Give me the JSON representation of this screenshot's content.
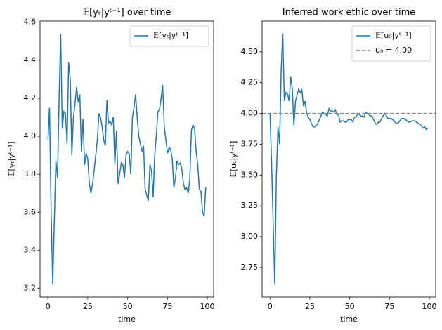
{
  "chart_data": [
    {
      "type": "line",
      "title": "𝔼[yₜ|yᵗ⁻¹] over time",
      "xlabel": "time",
      "ylabel": "𝔼[yₜ|yᵗ⁻¹]",
      "x": [
        0,
        1,
        2,
        3,
        4,
        5,
        6,
        7,
        8,
        9,
        10,
        11,
        12,
        13,
        14,
        15,
        16,
        17,
        18,
        19,
        20,
        21,
        22,
        23,
        24,
        25,
        26,
        27,
        28,
        29,
        30,
        31,
        32,
        33,
        34,
        35,
        36,
        37,
        38,
        39,
        40,
        41,
        42,
        43,
        44,
        45,
        46,
        47,
        48,
        49,
        50,
        51,
        52,
        53,
        54,
        55,
        56,
        57,
        58,
        59,
        60,
        61,
        62,
        63,
        64,
        65,
        66,
        67,
        68,
        69,
        70,
        71,
        72,
        73,
        74,
        75,
        76,
        77,
        78,
        79,
        80,
        81,
        82,
        83,
        84,
        85,
        86,
        87,
        88,
        89,
        90,
        91,
        92,
        93,
        94,
        95,
        96,
        97,
        98,
        99
      ],
      "series": [
        {
          "name": "𝔼[yₜ|yᵗ⁻¹]",
          "color": "#1f77b4",
          "values": [
            3.98,
            4.15,
            3.6,
            3.22,
            3.55,
            3.87,
            3.78,
            4.2,
            4.54,
            4.04,
            4.13,
            4.12,
            3.96,
            4.39,
            4.3,
            3.9,
            4.1,
            4.17,
            4.26,
            4.18,
            4.22,
            3.92,
            4.09,
            3.85,
            3.91,
            3.88,
            3.75,
            3.7,
            3.75,
            3.82,
            3.9,
            3.98,
            4.12,
            4.1,
            4.05,
            3.98,
            3.95,
            4.19,
            4.07,
            4.08,
            4.06,
            4.1,
            3.85,
            4.03,
            3.75,
            3.8,
            3.86,
            3.85,
            3.78,
            3.9,
            3.92,
            3.91,
            3.8,
            4.1,
            4.15,
            4.22,
            4.1,
            4.0,
            3.96,
            3.92,
            3.95,
            3.72,
            3.69,
            3.66,
            3.85,
            3.82,
            3.68,
            3.9,
            4.0,
            4.13,
            4.14,
            4.2,
            4.27,
            4.05,
            3.98,
            3.91,
            3.94,
            3.93,
            3.88,
            3.73,
            3.78,
            3.87,
            3.85,
            3.86,
            3.83,
            3.75,
            3.72,
            3.73,
            3.7,
            3.77,
            4.03,
            4.06,
            4.04,
            3.92,
            3.85,
            3.72,
            3.71,
            3.6,
            3.58,
            3.73
          ]
        }
      ],
      "xlim": [
        -4.95,
        103.95
      ],
      "ylim": [
        3.154,
        4.606
      ],
      "xticks": [
        0,
        25,
        50,
        75,
        100
      ],
      "yticks": [
        3.2,
        3.4,
        3.6,
        3.8,
        {
          "value": 4,
          "label": "4.0"
        },
        4.2,
        4.4,
        4.6
      ],
      "legend": "upper right"
    },
    {
      "type": "line",
      "title": "Inferred work ethic over time",
      "xlabel": "time",
      "ylabel": "𝔼[u₀|yᵗ⁻¹]",
      "x": [
        0,
        1,
        2,
        3,
        4,
        5,
        6,
        7,
        8,
        9,
        10,
        11,
        12,
        13,
        14,
        15,
        16,
        17,
        18,
        19,
        20,
        21,
        22,
        23,
        24,
        25,
        26,
        27,
        28,
        29,
        30,
        31,
        32,
        33,
        34,
        35,
        36,
        37,
        38,
        39,
        40,
        41,
        42,
        43,
        44,
        45,
        46,
        47,
        48,
        49,
        50,
        51,
        52,
        53,
        54,
        55,
        56,
        57,
        58,
        59,
        60,
        61,
        62,
        63,
        64,
        65,
        66,
        67,
        68,
        69,
        70,
        71,
        72,
        73,
        74,
        75,
        76,
        77,
        78,
        79,
        80,
        81,
        82,
        83,
        84,
        85,
        86,
        87,
        88,
        89,
        90,
        91,
        92,
        93,
        94,
        95,
        96,
        97,
        98,
        99
      ],
      "series": [
        {
          "name": "𝔼[u₀|yᵗ⁻¹]",
          "color": "#1f77b4",
          "values": [
            4.0,
            3.6,
            3.1,
            2.61,
            3.5,
            3.89,
            3.75,
            4.35,
            4.65,
            4.1,
            4.17,
            4.16,
            4.1,
            4.3,
            4.2,
            3.9,
            4.1,
            4.15,
            4.2,
            4.17,
            4.19,
            4.06,
            4.1,
            4.0,
            3.97,
            3.95,
            3.92,
            3.89,
            3.89,
            3.9,
            3.92,
            3.95,
            3.98,
            4.01,
            4.0,
            3.99,
            3.98,
            4.04,
            4.02,
            4.02,
            4.01,
            4.03,
            3.99,
            3.99,
            3.93,
            3.94,
            3.94,
            3.93,
            3.93,
            3.95,
            3.95,
            3.95,
            3.93,
            3.97,
            3.97,
            4.0,
            3.99,
            3.98,
            3.98,
            3.97,
            4.01,
            4.0,
            3.99,
            3.98,
            3.98,
            3.95,
            3.92,
            3.91,
            3.93,
            3.93,
            3.96,
            3.98,
            4.0,
            3.98,
            3.96,
            3.96,
            3.96,
            3.95,
            3.94,
            3.92,
            3.92,
            3.93,
            3.95,
            3.96,
            3.96,
            3.95,
            3.94,
            3.93,
            3.93,
            3.94,
            3.94,
            3.94,
            3.93,
            3.92,
            3.91,
            3.9,
            3.88,
            3.89,
            3.87,
            3.88
          ]
        }
      ],
      "hline": {
        "name": "u₀ = 4.00",
        "value": 4.0,
        "color": "#7f7f7f"
      },
      "xlim": [
        -4.95,
        103.95
      ],
      "ylim": [
        2.51,
        4.75
      ],
      "xticks": [
        0,
        25,
        50,
        75,
        100
      ],
      "yticks": [
        2.75,
        {
          "value": 3,
          "label": "3.00"
        },
        3.25,
        {
          "value": 3.5,
          "label": "3.50"
        },
        3.75,
        {
          "value": 4,
          "label": "4.00"
        },
        4.25,
        {
          "value": 4.5,
          "label": "4.50"
        }
      ],
      "legend": "upper right"
    }
  ]
}
